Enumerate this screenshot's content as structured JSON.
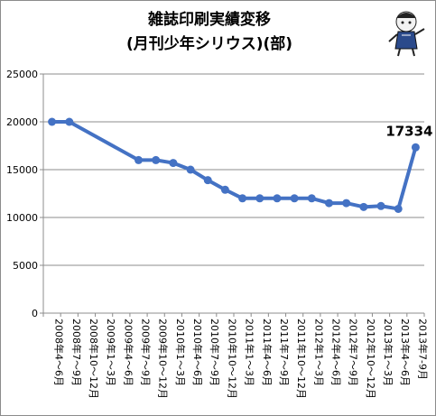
{
  "chart_data": {
    "type": "line",
    "title": "雑誌印刷実績変移",
    "subtitle": "(月刊少年シリウス)(部)",
    "xlabel": "",
    "ylabel": "",
    "ylim": [
      0,
      25000
    ],
    "yticks": [
      0,
      5000,
      10000,
      15000,
      20000,
      25000
    ],
    "grid": "horizontal",
    "categories": [
      "2008年4～6月",
      "2008年7～9月",
      "2008年10～12月",
      "2009年1～3月",
      "2009年4～6月",
      "2009年7～9月",
      "2009年10～12月",
      "2010年1～3月",
      "2010年4～6月",
      "2010年7～9月",
      "2010年10～12月",
      "2011年1～3月",
      "2011年4～6月",
      "2011年7～9月",
      "2011年10～12月",
      "2012年1～3月",
      "2012年4～6月",
      "2012年7～9月",
      "2012年10～12月",
      "2013年1～3月",
      "2013年4～6月",
      "2013年7-9月"
    ],
    "series": [
      {
        "name": "",
        "color": "#4472c4",
        "values": [
          20000,
          20000,
          null,
          null,
          null,
          16000,
          16000,
          15700,
          15000,
          13900,
          12900,
          12000,
          12000,
          12000,
          12000,
          12000,
          11500,
          11500,
          11100,
          11200,
          10900,
          17334
        ]
      }
    ],
    "data_labels": [
      {
        "index": 21,
        "text": "17334"
      }
    ]
  }
}
